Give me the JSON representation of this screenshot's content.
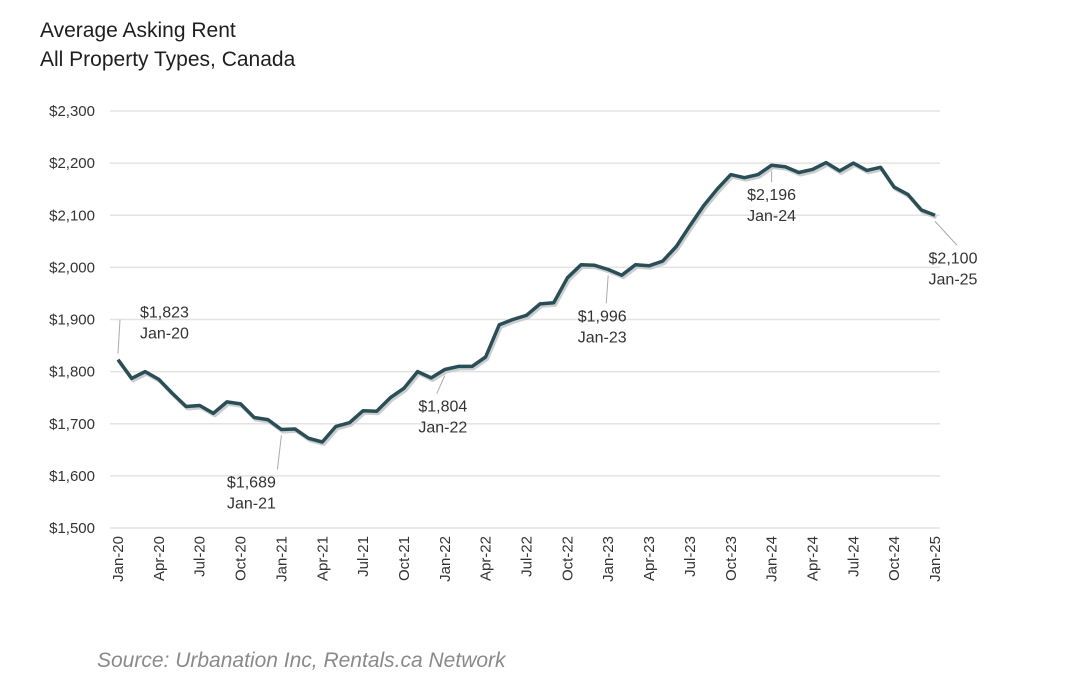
{
  "chart_data": {
    "type": "line",
    "title": "Average Asking Rent",
    "subtitle": "All Property Types, Canada",
    "xlabel": "",
    "ylabel": "",
    "ylim": [
      1500,
      2300
    ],
    "yticks": [
      "$1,500",
      "$1,600",
      "$1,700",
      "$1,800",
      "$1,900",
      "$2,000",
      "$2,100",
      "$2,200",
      "$2,300"
    ],
    "ytick_values": [
      1500,
      1600,
      1700,
      1800,
      1900,
      2000,
      2100,
      2200,
      2300
    ],
    "grid": true,
    "xtick_labels": [
      "Jan-20",
      "Apr-20",
      "Jul-20",
      "Oct-20",
      "Jan-21",
      "Apr-21",
      "Jul-21",
      "Oct-21",
      "Jan-22",
      "Apr-22",
      "Jul-22",
      "Oct-22",
      "Jan-23",
      "Apr-23",
      "Jul-23",
      "Oct-23",
      "Jan-24",
      "Apr-24",
      "Jul-24",
      "Oct-24",
      "Jan-25"
    ],
    "series": [
      {
        "name": "Average Asking Rent",
        "color": "#2b4e56",
        "values": [
          1823,
          1787,
          1800,
          1785,
          1758,
          1733,
          1735,
          1720,
          1742,
          1738,
          1712,
          1708,
          1689,
          1690,
          1672,
          1665,
          1695,
          1702,
          1725,
          1724,
          1750,
          1768,
          1800,
          1788,
          1804,
          1810,
          1810,
          1828,
          1890,
          1900,
          1908,
          1930,
          1932,
          1980,
          2005,
          2004,
          1996,
          1985,
          2005,
          2003,
          2012,
          2040,
          2080,
          2118,
          2150,
          2178,
          2172,
          2178,
          2196,
          2193,
          2182,
          2188,
          2201,
          2185,
          2200,
          2186,
          2192,
          2154,
          2140,
          2110,
          2100
        ]
      }
    ],
    "annotations": [
      {
        "index": 0,
        "value": "$1,823",
        "label": "Jan-20"
      },
      {
        "index": 12,
        "value": "$1,689",
        "label": "Jan-21"
      },
      {
        "index": 24,
        "value": "$1,804",
        "label": "Jan-22"
      },
      {
        "index": 36,
        "value": "$1,996",
        "label": "Jan-23"
      },
      {
        "index": 48,
        "value": "$2,196",
        "label": "Jan-24"
      },
      {
        "index": 60,
        "value": "$2,100",
        "label": "Jan-25"
      }
    ]
  },
  "source": "Source: Urbanation Inc, Rentals.ca Network"
}
